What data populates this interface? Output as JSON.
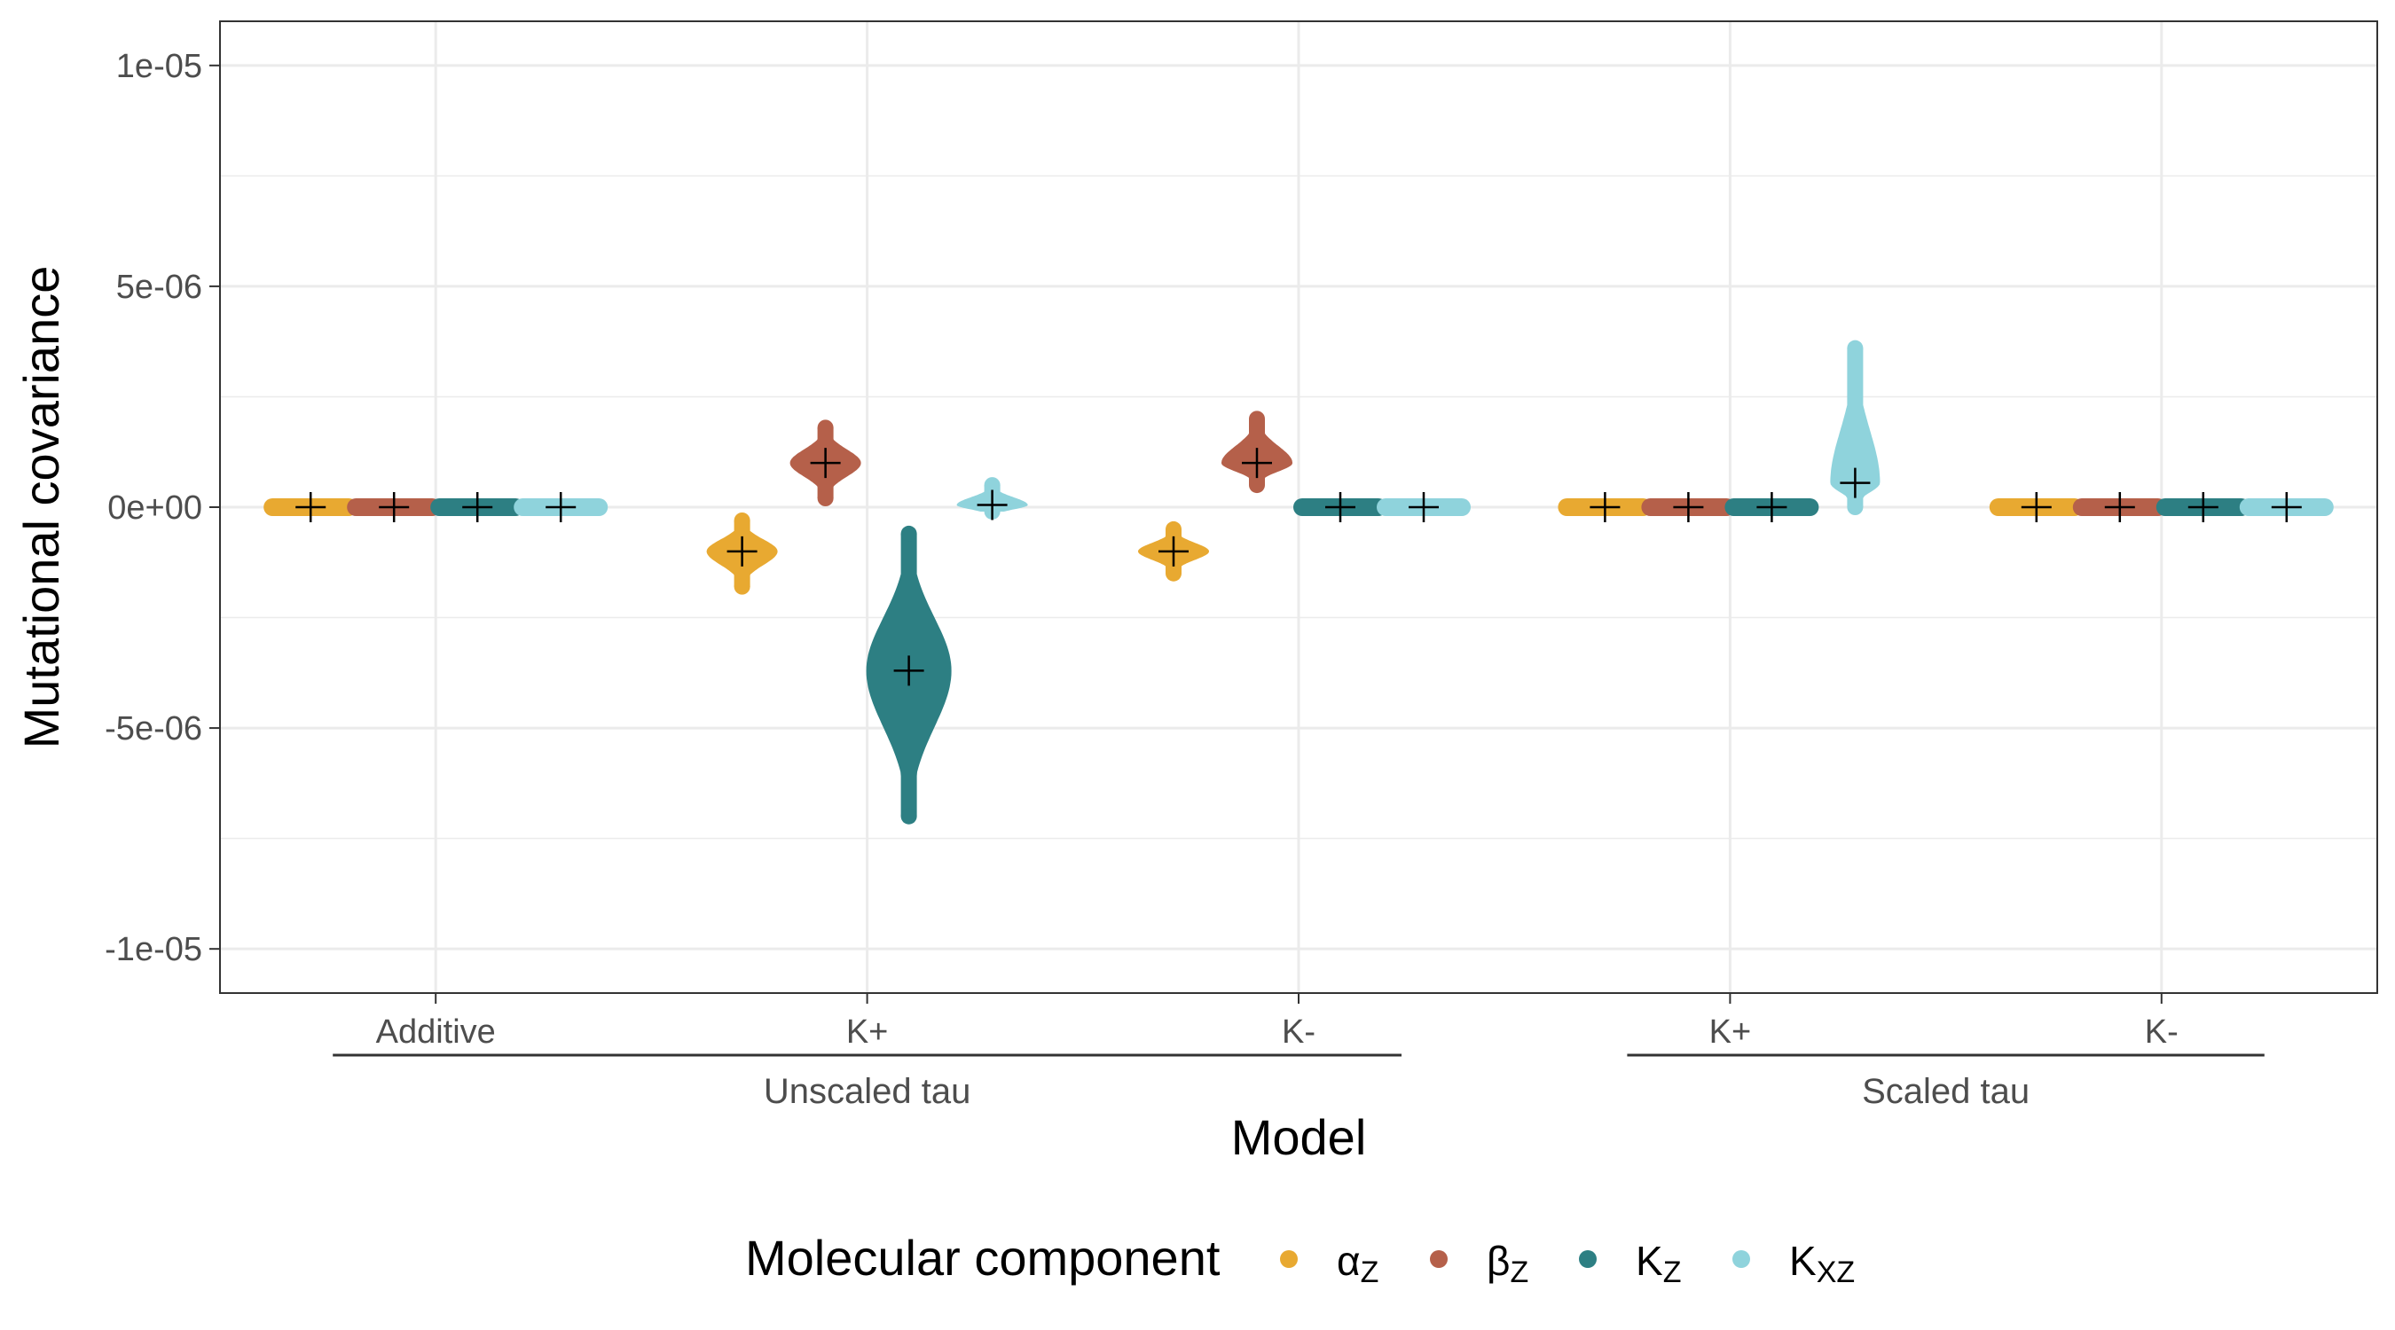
{
  "chart_data": {
    "type": "scatter",
    "subtype": "violin-beeswarm",
    "xlabel": "Model",
    "ylabel": "Mutational covariance",
    "ylim": [
      -1.1e-05,
      1.1e-05
    ],
    "y_ticks": [
      {
        "value": 1e-05,
        "label": "1e-05"
      },
      {
        "value": 5e-06,
        "label": "5e-06"
      },
      {
        "value": 0,
        "label": "0e+00"
      },
      {
        "value": -5e-06,
        "label": "-5e-06"
      },
      {
        "value": -1e-05,
        "label": "-1e-05"
      }
    ],
    "categories": [
      "Additive",
      "K+",
      "K-",
      "K+",
      "K-"
    ],
    "groups": [
      {
        "label": "Unscaled tau",
        "categories": [
          0,
          1,
          2
        ]
      },
      {
        "label": "Scaled tau",
        "categories": [
          3,
          4
        ]
      }
    ],
    "grid": true,
    "legend": {
      "title": "Molecular component",
      "position": "bottom",
      "entries": [
        {
          "key": "alpha",
          "main": "α",
          "sub": "Z",
          "color": "#E8A931"
        },
        {
          "key": "beta",
          "main": "β",
          "sub": "Z",
          "color": "#B5604A"
        },
        {
          "key": "kz",
          "main": "K",
          "sub": "Z",
          "color": "#2D7F83"
        },
        {
          "key": "kxz",
          "main": "K",
          "sub": "XZ",
          "color": "#8FD3DC"
        }
      ]
    },
    "series": [
      {
        "key": "alpha",
        "means": [
          0,
          -1e-06,
          -1e-06,
          0,
          0
        ],
        "mins": [
          -1e-07,
          -1.8e-06,
          -1.5e-06,
          -1e-07,
          -1e-07
        ],
        "maxs": [
          1e-07,
          -3e-07,
          -5e-07,
          1e-07,
          1e-07
        ]
      },
      {
        "key": "beta",
        "means": [
          0,
          1e-06,
          1e-06,
          0,
          0
        ],
        "mins": [
          -1e-07,
          2e-07,
          5e-07,
          -1e-07,
          -1e-07
        ],
        "maxs": [
          1e-07,
          1.8e-06,
          2e-06,
          1e-07,
          1e-07
        ]
      },
      {
        "key": "kz",
        "means": [
          0,
          -3.7e-06,
          0,
          0,
          0
        ],
        "mins": [
          -1e-07,
          -7e-06,
          -1e-07,
          -1e-07,
          -1e-07
        ],
        "maxs": [
          1e-07,
          -6e-07,
          1e-07,
          1e-07,
          1e-07
        ]
      },
      {
        "key": "kxz",
        "means": [
          0,
          5e-08,
          0,
          5.5e-07,
          0
        ],
        "mins": [
          -1e-07,
          -1e-07,
          -1e-07,
          0,
          -1e-07
        ],
        "maxs": [
          1e-07,
          5e-07,
          1e-07,
          3.6e-06,
          1e-07
        ]
      }
    ]
  }
}
